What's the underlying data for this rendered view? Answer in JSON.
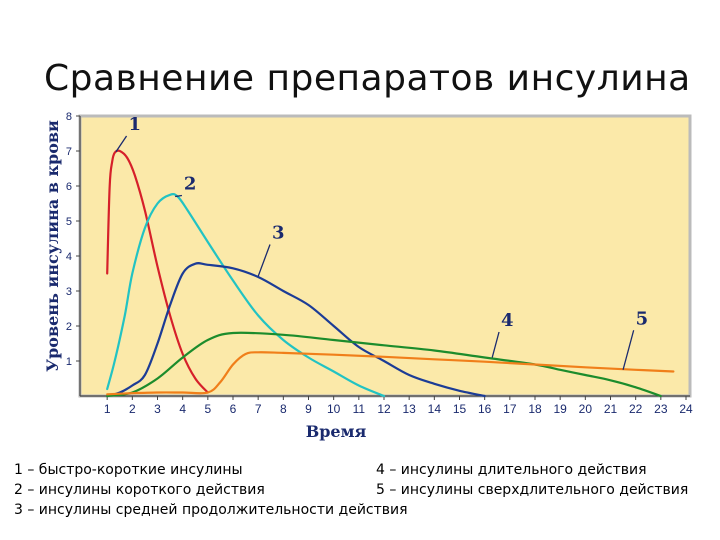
{
  "title": "Сравнение препаратов инсулина",
  "legend_lines": [
    "1 – быстро-короткие инсулины",
    "2 – инсулины короткого действия",
    "3 – инсулины средней продолжительности действия",
    "4 – инсулины длительного действия",
    "5 – инсулины сверхдлительного действия"
  ],
  "chart_data": {
    "type": "line",
    "title": "Сравнение препаратов инсулина",
    "xlabel": "Время",
    "ylabel": "Уровень инсулина в крови",
    "xlim": [
      0,
      24
    ],
    "ylim": [
      0,
      8
    ],
    "x_ticks": [
      1,
      2,
      3,
      4,
      5,
      6,
      7,
      8,
      9,
      10,
      11,
      12,
      13,
      14,
      15,
      16,
      17,
      18,
      19,
      20,
      21,
      22,
      23,
      24
    ],
    "y_ticks": [
      1,
      2,
      3,
      4,
      5,
      6,
      7,
      8
    ],
    "grid": false,
    "background": "#fbe9a9",
    "series": [
      {
        "name": "1",
        "color": "#d6202a",
        "x": [
          1,
          1.1,
          1.2,
          1.3,
          1.5,
          1.8,
          2.1,
          2.5,
          3,
          3.5,
          4,
          4.5,
          5
        ],
        "y": [
          3.5,
          6.0,
          6.7,
          6.95,
          7.0,
          6.8,
          6.3,
          5.3,
          3.7,
          2.3,
          1.2,
          0.5,
          0.1
        ]
      },
      {
        "name": "2",
        "color": "#22c3c3",
        "x": [
          1,
          1.3,
          1.7,
          2,
          2.5,
          3,
          3.5,
          3.8,
          4.2,
          5,
          6,
          7,
          8,
          9,
          10,
          11,
          12
        ],
        "y": [
          0.2,
          1.0,
          2.3,
          3.5,
          4.8,
          5.5,
          5.75,
          5.7,
          5.3,
          4.4,
          3.3,
          2.3,
          1.6,
          1.1,
          0.7,
          0.3,
          0
        ]
      },
      {
        "name": "3",
        "color": "#1c3c96",
        "x": [
          1,
          1.5,
          2,
          2.5,
          3,
          3.5,
          4,
          4.5,
          5,
          6,
          7,
          8,
          9,
          10,
          11,
          12,
          13,
          14,
          15,
          16
        ],
        "y": [
          0,
          0.1,
          0.3,
          0.6,
          1.5,
          2.6,
          3.5,
          3.78,
          3.75,
          3.65,
          3.4,
          3.0,
          2.6,
          2.0,
          1.4,
          1.0,
          0.6,
          0.35,
          0.15,
          0
        ]
      },
      {
        "name": "4",
        "color": "#1c8c2c",
        "x": [
          1,
          2,
          3,
          4,
          5,
          6,
          8,
          10,
          12,
          14,
          16,
          18,
          19,
          20,
          21,
          22,
          23
        ],
        "y": [
          0,
          0.1,
          0.5,
          1.1,
          1.6,
          1.8,
          1.75,
          1.6,
          1.45,
          1.3,
          1.1,
          0.9,
          0.75,
          0.6,
          0.45,
          0.25,
          0
        ]
      },
      {
        "name": "5",
        "color": "#f07f1a",
        "x": [
          1,
          2,
          3,
          4,
          5,
          5.5,
          6,
          6.5,
          7,
          8,
          10,
          12,
          14,
          16,
          18,
          20,
          22,
          23.5
        ],
        "y": [
          0.05,
          0.08,
          0.1,
          0.1,
          0.1,
          0.4,
          0.9,
          1.2,
          1.25,
          1.23,
          1.18,
          1.12,
          1.05,
          0.98,
          0.9,
          0.82,
          0.75,
          0.7
        ]
      }
    ],
    "annotations": [
      {
        "text": "1",
        "series": "1"
      },
      {
        "text": "2",
        "series": "2"
      },
      {
        "text": "3",
        "series": "3"
      },
      {
        "text": "4",
        "series": "4"
      },
      {
        "text": "5",
        "series": "5"
      }
    ]
  }
}
